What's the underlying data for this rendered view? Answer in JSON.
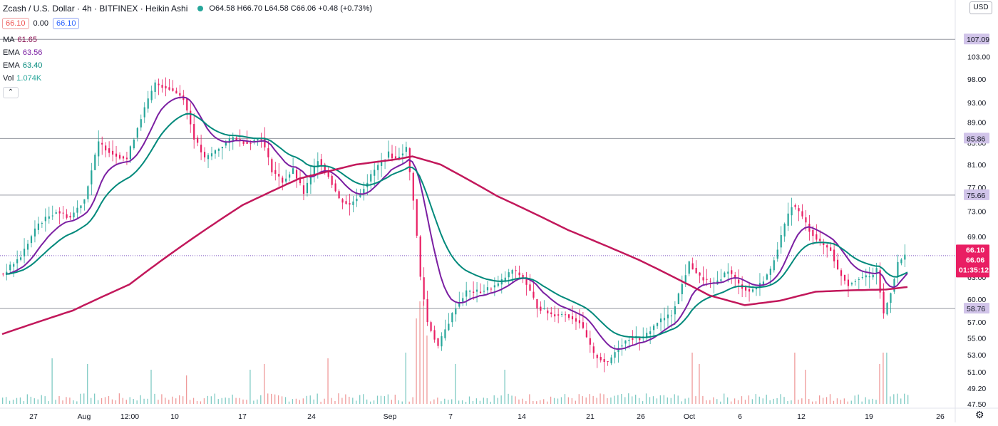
{
  "header": {
    "symbol": "Zcash / U.S. Dollar · 4h · BITFINEX · Heikin Ashi",
    "ohlc_label": "O64.58 H66.70 L64.58 C66.06 +0.48 (+0.73%)",
    "sell_price": "66.10",
    "spread": "0.00",
    "buy_price": "66.10"
  },
  "indicators": [
    {
      "name": "MA",
      "value": "61.65",
      "color": "#880e4f"
    },
    {
      "name": "EMA",
      "value": "63.56",
      "color": "#7b1fa2"
    },
    {
      "name": "EMA",
      "value": "63.40",
      "color": "#00897b"
    },
    {
      "name": "Vol",
      "value": "1.074K",
      "color": "#26a69a"
    }
  ],
  "currency_label": "USD",
  "colors": {
    "up": "#26a69a",
    "down": "#e91e63",
    "ma": "#c2185b",
    "ema_fast": "#7b1fa2",
    "ema_slow": "#00897b",
    "hline": "#9598a1",
    "hline_label_bg": "#b39ddb",
    "last_price_bg": "#e91e63",
    "current_line": "#7e57c2",
    "vol_up": "#80cbc4",
    "vol_down": "#ef9a9a"
  },
  "chart_data": {
    "type": "candlestick",
    "title": "Zcash / U.S. Dollar · 4h · BITFINEX · Heikin Ashi",
    "y_axis": {
      "scale": "log",
      "ylim": [
        47.5,
        112
      ],
      "ticks": [
        "103.00",
        "98.00",
        "93.00",
        "89.00",
        "85.00",
        "81.00",
        "77.00",
        "73.00",
        "69.00",
        "63.00",
        "60.00",
        "57.00",
        "55.00",
        "53.00",
        "51.00",
        "49.20",
        "47.50"
      ]
    },
    "x_axis": {
      "ticks": [
        "27",
        "Aug",
        "12:00",
        "10",
        "17",
        "24",
        "Sep",
        "7",
        "14",
        "21",
        "26",
        "Oct",
        "6",
        "12",
        "19",
        "26"
      ]
    },
    "horizontal_lines": [
      {
        "label": "107.09",
        "value": 107.09
      },
      {
        "label": "85.86",
        "value": 85.86
      },
      {
        "label": "75.66",
        "value": 75.66
      },
      {
        "label": "58.76",
        "value": 58.76
      }
    ],
    "current_line": {
      "label": "66.11",
      "value": 66.11
    },
    "last_price": {
      "value": 66.06,
      "labels": [
        "66.10",
        "66.06",
        "01:35:12"
      ]
    },
    "price_keypoints": [
      [
        0,
        63.5
      ],
      [
        0.5,
        63.5
      ],
      [
        3,
        66
      ],
      [
        5.5,
        71
      ],
      [
        8,
        73
      ],
      [
        10,
        72
      ],
      [
        12,
        75
      ],
      [
        14,
        85
      ],
      [
        16,
        83
      ],
      [
        18,
        82
      ],
      [
        20,
        90
      ],
      [
        22,
        97
      ],
      [
        24,
        96
      ],
      [
        26,
        94
      ],
      [
        27.5,
        86
      ],
      [
        29,
        82
      ],
      [
        31,
        84
      ],
      [
        33,
        86
      ],
      [
        35,
        85
      ],
      [
        37,
        86
      ],
      [
        38.5,
        80
      ],
      [
        40,
        78
      ],
      [
        41.5,
        80
      ],
      [
        43,
        76
      ],
      [
        45,
        82
      ],
      [
        46.5,
        79
      ],
      [
        48,
        75
      ],
      [
        49.5,
        74
      ],
      [
        51,
        76
      ],
      [
        53,
        80
      ],
      [
        55,
        83
      ],
      [
        56,
        82
      ],
      [
        57.5,
        84
      ],
      [
        58.5,
        75
      ],
      [
        59.5,
        63
      ],
      [
        60.5,
        57
      ],
      [
        62,
        54
      ],
      [
        63,
        56
      ],
      [
        64.5,
        59
      ],
      [
        66,
        61
      ],
      [
        68,
        61
      ],
      [
        70.5,
        62
      ],
      [
        72.5,
        64
      ],
      [
        74,
        63
      ],
      [
        76,
        59
      ],
      [
        78,
        58
      ],
      [
        80,
        58
      ],
      [
        82,
        57
      ],
      [
        84,
        53
      ],
      [
        86,
        52
      ],
      [
        87.5,
        54
      ],
      [
        89,
        55
      ],
      [
        91,
        55
      ],
      [
        93,
        57
      ],
      [
        95,
        58
      ],
      [
        96.5,
        62
      ],
      [
        97.5,
        65
      ],
      [
        99,
        63
      ],
      [
        101,
        62
      ],
      [
        103,
        64
      ],
      [
        104.5,
        62
      ],
      [
        106,
        61
      ],
      [
        107.5,
        62
      ],
      [
        109,
        64
      ],
      [
        110.5,
        69
      ],
      [
        112,
        74
      ],
      [
        113,
        73
      ],
      [
        114.5,
        70
      ],
      [
        116,
        68
      ],
      [
        117.5,
        67
      ],
      [
        118.5,
        64
      ],
      [
        120,
        62
      ],
      [
        121.5,
        63
      ],
      [
        123,
        63
      ],
      [
        124,
        64
      ],
      [
        125,
        58
      ],
      [
        126,
        61
      ],
      [
        127,
        65
      ],
      [
        128,
        66.06
      ]
    ],
    "ma_keypoints": [
      [
        0,
        55.5
      ],
      [
        10,
        58.5
      ],
      [
        18,
        62
      ],
      [
        26,
        68
      ],
      [
        34,
        74
      ],
      [
        42,
        78.5
      ],
      [
        50,
        81
      ],
      [
        56,
        82
      ],
      [
        58,
        82.5
      ],
      [
        62,
        81
      ],
      [
        70,
        75.5
      ],
      [
        80,
        70
      ],
      [
        90,
        65.5
      ],
      [
        96,
        62.5
      ],
      [
        100,
        60.5
      ],
      [
        105,
        59.2
      ],
      [
        110,
        59.8
      ],
      [
        115,
        61
      ],
      [
        120,
        61.2
      ],
      [
        125,
        61.3
      ],
      [
        128,
        61.65
      ]
    ],
    "volume_peaks": [
      [
        7,
        8
      ],
      [
        12,
        7
      ],
      [
        21,
        6
      ],
      [
        26,
        5
      ],
      [
        35,
        6
      ],
      [
        37,
        7
      ],
      [
        46,
        8
      ],
      [
        57,
        9
      ],
      [
        58.5,
        15
      ],
      [
        59.2,
        18
      ],
      [
        60,
        12
      ],
      [
        64,
        7
      ],
      [
        71,
        6
      ],
      [
        97.5,
        9
      ],
      [
        98.5,
        7
      ],
      [
        112,
        9
      ],
      [
        113.5,
        6
      ],
      [
        124,
        7
      ],
      [
        124.8,
        9
      ]
    ],
    "series": [
      {
        "name": "MA",
        "type": "line",
        "last": 61.65
      },
      {
        "name": "EMA",
        "type": "line",
        "last": 63.56
      },
      {
        "name": "EMA",
        "type": "line",
        "last": 63.4
      },
      {
        "name": "Vol",
        "type": "bar",
        "last": 1074
      }
    ]
  }
}
